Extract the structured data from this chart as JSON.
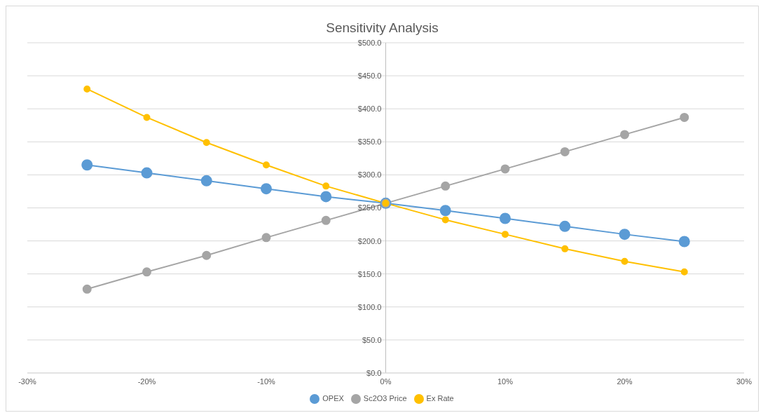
{
  "chart_data": {
    "type": "line",
    "title": "Sensitivity Analysis",
    "x": [
      -25,
      -20,
      -15,
      -10,
      -5,
      0,
      5,
      10,
      15,
      20,
      25
    ],
    "series": [
      {
        "name": "OPEX",
        "color": "#5b9bd5",
        "values": [
          315,
          303,
          291,
          279,
          267,
          257,
          246,
          234,
          222,
          210,
          199
        ]
      },
      {
        "name": "Sc2O3 Price",
        "color": "#a5a5a5",
        "values": [
          127,
          153,
          178,
          205,
          231,
          257,
          283,
          309,
          335,
          361,
          387
        ]
      },
      {
        "name": "Ex Rate",
        "color": "#ffc000",
        "values": [
          430,
          387,
          349,
          315,
          283,
          257,
          232,
          210,
          188,
          169,
          153
        ]
      }
    ],
    "xlim": [
      -30,
      30
    ],
    "xticks": [
      {
        "value": -30,
        "label": "-30%"
      },
      {
        "value": -20,
        "label": "-20%"
      },
      {
        "value": -10,
        "label": "-10%"
      },
      {
        "value": 0,
        "label": "0%"
      },
      {
        "value": 10,
        "label": "10%"
      },
      {
        "value": 20,
        "label": "20%"
      },
      {
        "value": 30,
        "label": "30%"
      }
    ],
    "ylim": [
      0,
      500
    ],
    "yticks": [
      {
        "value": 0,
        "label": "$0.0"
      },
      {
        "value": 50,
        "label": "$50.0"
      },
      {
        "value": 100,
        "label": "$100.0"
      },
      {
        "value": 150,
        "label": "$150.0"
      },
      {
        "value": 200,
        "label": "$200.0"
      },
      {
        "value": 250,
        "label": "$250.0"
      },
      {
        "value": 300,
        "label": "$300.0"
      },
      {
        "value": 350,
        "label": "$350.0"
      },
      {
        "value": 400,
        "label": "$400.0"
      },
      {
        "value": 450,
        "label": "$450.0"
      },
      {
        "value": 500,
        "label": "$500.0"
      }
    ],
    "grid": "y",
    "legend": "bottom",
    "marker": "circle",
    "line_style": "solid"
  }
}
